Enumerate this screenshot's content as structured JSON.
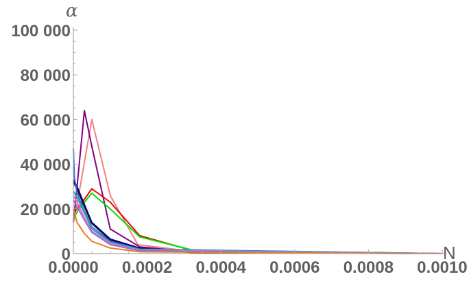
{
  "chart_data": {
    "type": "line",
    "xlabel": "N",
    "ylabel": "α",
    "xlim": [
      0,
      0.001
    ],
    "ylim": [
      0,
      100000
    ],
    "x_ticks": [
      {
        "value": 0,
        "label": "0.0000"
      },
      {
        "value": 0.0002,
        "label": "0.0002"
      },
      {
        "value": 0.0004,
        "label": "0.0004"
      },
      {
        "value": 0.0006,
        "label": "0.0006"
      },
      {
        "value": 0.0008,
        "label": "0.0008"
      },
      {
        "value": 0.001,
        "label": "0.0010"
      }
    ],
    "y_ticks": [
      {
        "value": 0,
        "label": "0"
      },
      {
        "value": 20000,
        "label": "20 000"
      },
      {
        "value": 40000,
        "label": "40 000"
      },
      {
        "value": 60000,
        "label": "60 000"
      },
      {
        "value": 80000,
        "label": "80 000"
      },
      {
        "value": 100000,
        "label": "100 000"
      }
    ],
    "grid": false,
    "series": [
      {
        "color": "#f08080",
        "points": [
          [
            0.0,
            15000
          ],
          [
            1e-05,
            22000
          ],
          [
            5e-05,
            60000
          ],
          [
            0.0001,
            26000
          ],
          [
            0.000175,
            4000
          ],
          [
            0.00032,
            1000
          ],
          [
            0.0006,
            200
          ],
          [
            0.001,
            0
          ]
        ]
      },
      {
        "color": "#800080",
        "points": [
          [
            0.0,
            14000
          ],
          [
            1e-05,
            30000
          ],
          [
            3e-05,
            64000
          ],
          [
            5e-05,
            48000
          ],
          [
            0.0001,
            11000
          ],
          [
            0.00018,
            3000
          ],
          [
            0.00032,
            800
          ],
          [
            0.001,
            0
          ]
        ]
      },
      {
        "color": "#ee0000",
        "points": [
          [
            0.0,
            18000
          ],
          [
            2e-05,
            22000
          ],
          [
            5e-05,
            29000
          ],
          [
            0.0001,
            23000
          ],
          [
            0.00018,
            8000
          ],
          [
            0.00032,
            1500
          ],
          [
            0.001,
            0
          ]
        ]
      },
      {
        "color": "#00dd00",
        "points": [
          [
            0.0,
            16000
          ],
          [
            2e-05,
            21000
          ],
          [
            5e-05,
            27000
          ],
          [
            0.0001,
            20000
          ],
          [
            0.00018,
            7500
          ],
          [
            0.00032,
            1700
          ],
          [
            0.0006,
            300
          ],
          [
            0.001,
            0
          ]
        ]
      },
      {
        "color": "#0000cc",
        "points": [
          [
            0.0,
            33000
          ],
          [
            1e-05,
            30000
          ],
          [
            3e-05,
            22000
          ],
          [
            5e-05,
            14000
          ],
          [
            0.0001,
            6500
          ],
          [
            0.00018,
            2500
          ],
          [
            0.00032,
            600
          ],
          [
            0.001,
            0
          ]
        ]
      },
      {
        "color": "#111111",
        "points": [
          [
            0.0,
            32000
          ],
          [
            1e-05,
            29000
          ],
          [
            3e-05,
            21000
          ],
          [
            5e-05,
            13500
          ],
          [
            0.0001,
            6000
          ],
          [
            0.00018,
            2300
          ],
          [
            0.00032,
            500
          ],
          [
            0.001,
            0
          ]
        ]
      },
      {
        "color": "#4169e1",
        "points": [
          [
            0.0,
            47000
          ],
          [
            3e-06,
            34000
          ],
          [
            1e-05,
            27000
          ],
          [
            3e-05,
            19000
          ],
          [
            5e-05,
            12000
          ],
          [
            0.0001,
            5500
          ],
          [
            0.00018,
            2000
          ],
          [
            0.001,
            0
          ]
        ]
      },
      {
        "color": "#20b2aa",
        "points": [
          [
            0.0,
            28000
          ],
          [
            1e-05,
            25000
          ],
          [
            3e-05,
            18000
          ],
          [
            5e-05,
            11000
          ],
          [
            0.0001,
            5000
          ],
          [
            0.00018,
            1800
          ],
          [
            0.001,
            0
          ]
        ]
      },
      {
        "color": "#ff66cc",
        "points": [
          [
            0.0,
            26000
          ],
          [
            1e-05,
            23000
          ],
          [
            3e-05,
            16000
          ],
          [
            5e-05,
            10000
          ],
          [
            0.0001,
            4500
          ],
          [
            0.00018,
            1500
          ],
          [
            0.001,
            0
          ]
        ]
      },
      {
        "color": "#9370db",
        "points": [
          [
            0.0,
            24000
          ],
          [
            1e-05,
            21000
          ],
          [
            3e-05,
            15000
          ],
          [
            5e-05,
            9500
          ],
          [
            0.0001,
            4000
          ],
          [
            0.00018,
            1300
          ],
          [
            0.001,
            0
          ]
        ]
      },
      {
        "color": "#e67e22",
        "points": [
          [
            0.0,
            20000
          ],
          [
            1e-05,
            14000
          ],
          [
            3e-05,
            9000
          ],
          [
            5e-05,
            5500
          ],
          [
            0.0001,
            2500
          ],
          [
            0.00018,
            800
          ],
          [
            0.001,
            0
          ]
        ]
      }
    ]
  }
}
